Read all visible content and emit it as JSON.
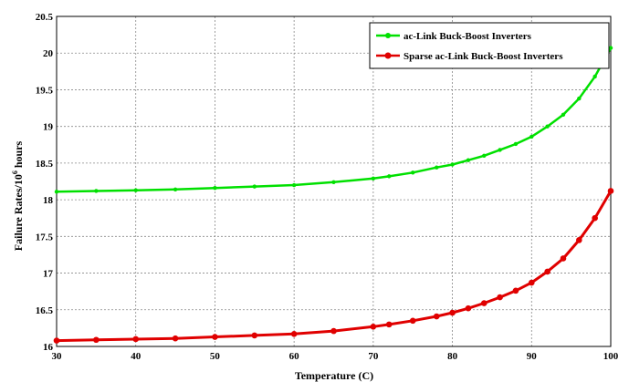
{
  "chart_data": {
    "type": "line",
    "xlabel": "Temperature (C)",
    "ylabel_main": "Failure Rates/10",
    "ylabel_exp": "6",
    "ylabel_tail": " hours",
    "xlim": [
      30,
      100
    ],
    "ylim": [
      16,
      20.5
    ],
    "grid": true,
    "legend_position": "top-right",
    "x_ticks": [
      "30",
      "40",
      "50",
      "60",
      "70",
      "80",
      "90",
      "100"
    ],
    "y_ticks": [
      "16",
      "16.5",
      "17",
      "17.5",
      "18",
      "18.5",
      "19",
      "19.5",
      "20",
      "20.5"
    ],
    "x": [
      30,
      35,
      40,
      45,
      50,
      55,
      60,
      65,
      70,
      72,
      75,
      78,
      80,
      82,
      84,
      86,
      88,
      90,
      92,
      94,
      96,
      98,
      100
    ],
    "series": [
      {
        "name": "ac-Link Buck-Boost Inverters",
        "color": "#00e000",
        "marker": "star",
        "values": [
          18.11,
          18.12,
          18.13,
          18.14,
          18.16,
          18.18,
          18.2,
          18.24,
          18.29,
          18.32,
          18.37,
          18.44,
          18.48,
          18.54,
          18.6,
          18.68,
          18.76,
          18.86,
          19.0,
          19.16,
          19.38,
          19.68,
          20.07
        ]
      },
      {
        "name": "Sparse ac-Link Buck-Boost Inverters",
        "color": "#e00000",
        "marker": "circle",
        "values": [
          16.08,
          16.09,
          16.1,
          16.11,
          16.13,
          16.15,
          16.17,
          16.21,
          16.27,
          16.3,
          16.35,
          16.41,
          16.46,
          16.52,
          16.59,
          16.67,
          16.76,
          16.87,
          17.02,
          17.2,
          17.45,
          17.75,
          18.12
        ]
      }
    ]
  }
}
